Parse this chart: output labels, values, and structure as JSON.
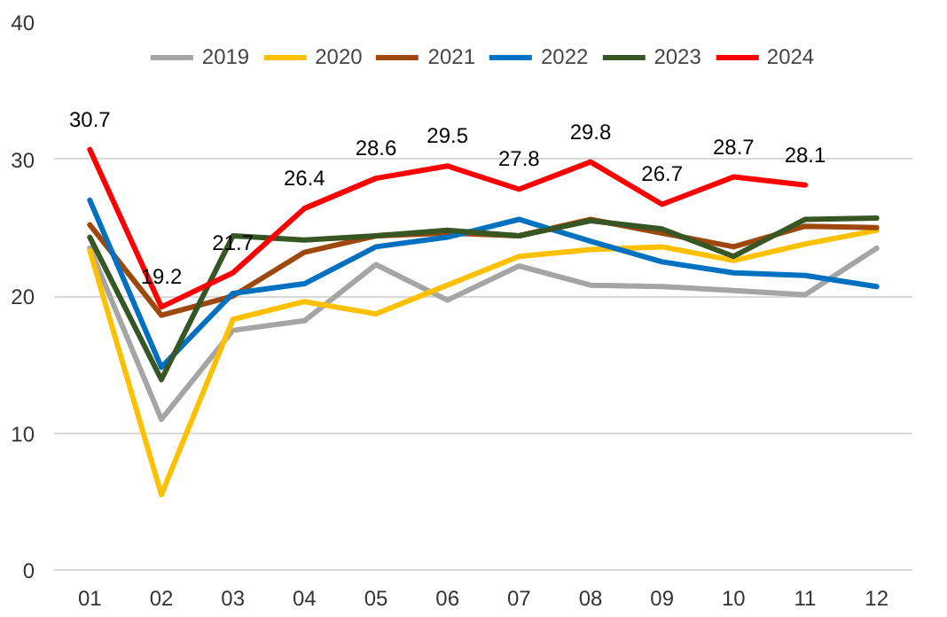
{
  "chart_data": {
    "type": "line",
    "categories": [
      "01",
      "02",
      "03",
      "04",
      "05",
      "06",
      "07",
      "08",
      "09",
      "10",
      "11",
      "12"
    ],
    "ylim": [
      0,
      40
    ],
    "yticks": [
      0,
      10,
      20,
      30,
      40
    ],
    "grid": "y",
    "legend": "top",
    "line_style": "solid",
    "marker": "none",
    "series": [
      {
        "name": "2019",
        "color": "#a5a5a5",
        "values": [
          23.5,
          11,
          17.5,
          18.2,
          22.3,
          19.7,
          22.2,
          20.8,
          20.7,
          20.4,
          20.1,
          23.5
        ]
      },
      {
        "name": "2020",
        "color": "#ffc000",
        "values": [
          23.3,
          5.5,
          18.3,
          19.6,
          18.7,
          20.8,
          22.9,
          23.4,
          23.6,
          22.6,
          23.8,
          24.8
        ]
      },
      {
        "name": "2021",
        "color": "#9e480e",
        "values": [
          25.2,
          18.6,
          20,
          23.2,
          24.4,
          24.6,
          24.4,
          25.6,
          24.6,
          23.6,
          25.1,
          25.0
        ]
      },
      {
        "name": "2022",
        "color": "#0070c0",
        "values": [
          27,
          14.8,
          20.2,
          20.9,
          23.6,
          24.3,
          25.6,
          24,
          22.5,
          21.7,
          21.5,
          20.7
        ]
      },
      {
        "name": "2023",
        "color": "#375623",
        "values": [
          24.3,
          13.9,
          24.4,
          24.1,
          24.4,
          24.8,
          24.4,
          25.5,
          24.9,
          22.9,
          25.6,
          25.7
        ]
      },
      {
        "name": "2024",
        "color": "#ff0000",
        "values": [
          30.7,
          19.2,
          21.7,
          26.4,
          28.6,
          29.5,
          27.8,
          29.8,
          26.7,
          28.7,
          28.1,
          null
        ],
        "value_labels": [
          "30.7",
          "19.2",
          "21.7",
          "26.4",
          "28.6",
          "29.5",
          "27.8",
          "29.8",
          "26.7",
          "28.7",
          "28.1",
          null
        ]
      }
    ]
  }
}
